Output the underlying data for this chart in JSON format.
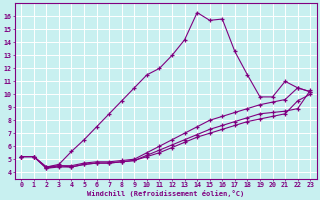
{
  "xlabel": "Windchill (Refroidissement éolien,°C)",
  "ylabel": "",
  "bg_color": "#c8f0f0",
  "line_color": "#800080",
  "grid_color": "#ffffff",
  "xlim_min": -0.5,
  "xlim_max": 23.5,
  "ylim_min": 3.5,
  "ylim_max": 17.0,
  "xticks": [
    0,
    1,
    2,
    3,
    4,
    5,
    6,
    7,
    8,
    9,
    10,
    11,
    12,
    13,
    14,
    15,
    16,
    17,
    18,
    19,
    20,
    21,
    22,
    23
  ],
  "yticks": [
    4,
    5,
    6,
    7,
    8,
    9,
    10,
    11,
    12,
    13,
    14,
    15,
    16
  ],
  "series1_x": [
    0,
    1,
    2,
    3,
    4,
    5,
    6,
    7,
    8,
    9,
    10,
    11,
    12,
    13,
    14,
    15,
    16,
    17,
    18,
    19,
    20,
    21,
    22,
    23
  ],
  "series1_y": [
    5.2,
    5.2,
    4.4,
    4.6,
    5.6,
    6.5,
    7.5,
    8.5,
    9.5,
    10.5,
    11.5,
    12.0,
    13.0,
    14.2,
    16.3,
    15.7,
    15.8,
    13.3,
    11.5,
    9.8,
    9.8,
    11.0,
    10.5,
    10.2
  ],
  "series2_x": [
    0,
    1,
    2,
    3,
    4,
    5,
    6,
    7,
    8,
    9,
    10,
    11,
    12,
    13,
    14,
    15,
    16,
    17,
    18,
    19,
    20,
    21,
    22,
    23
  ],
  "series2_y": [
    5.2,
    5.2,
    4.4,
    4.5,
    4.5,
    4.7,
    4.8,
    4.8,
    4.9,
    5.0,
    5.5,
    6.0,
    6.5,
    7.0,
    7.5,
    8.0,
    8.3,
    8.6,
    8.9,
    9.2,
    9.4,
    9.6,
    10.5,
    10.2
  ],
  "series3_x": [
    0,
    1,
    2,
    3,
    4,
    5,
    6,
    7,
    8,
    9,
    10,
    11,
    12,
    13,
    14,
    15,
    16,
    17,
    18,
    19,
    20,
    21,
    22,
    23
  ],
  "series3_y": [
    5.2,
    5.2,
    4.3,
    4.5,
    4.4,
    4.6,
    4.7,
    4.7,
    4.8,
    4.9,
    5.3,
    5.7,
    6.1,
    6.5,
    6.9,
    7.3,
    7.6,
    7.9,
    8.2,
    8.5,
    8.6,
    8.7,
    8.9,
    10.3
  ],
  "series4_x": [
    0,
    1,
    2,
    3,
    4,
    5,
    6,
    7,
    8,
    9,
    10,
    11,
    12,
    13,
    14,
    15,
    16,
    17,
    18,
    19,
    20,
    21,
    22,
    23
  ],
  "series4_y": [
    5.2,
    5.2,
    4.3,
    4.4,
    4.4,
    4.6,
    4.7,
    4.7,
    4.8,
    4.9,
    5.2,
    5.5,
    5.9,
    6.3,
    6.7,
    7.0,
    7.3,
    7.6,
    7.9,
    8.1,
    8.3,
    8.5,
    9.5,
    10.0
  ]
}
